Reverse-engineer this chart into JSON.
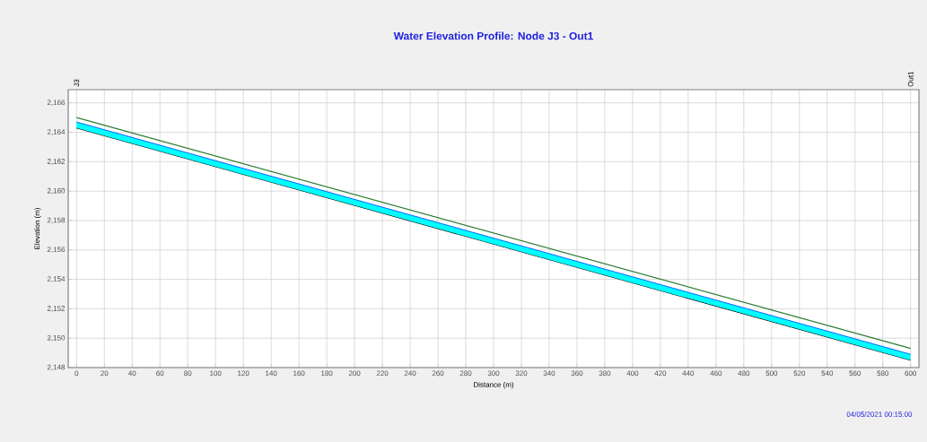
{
  "chart_data": {
    "type": "line",
    "title": "Water Elevation Profile:  Node J3 - Out1",
    "xlabel": "Distance (m)",
    "ylabel": "Elevation (m)",
    "x": [
      0,
      600
    ],
    "series": [
      {
        "color": "#000000",
        "values": [
          2164.3,
          2148.5
        ]
      },
      {
        "type": "area",
        "color": "#00ffff",
        "values": [
          2164.7,
          2148.9
        ]
      },
      {
        "color": "#2e7d32",
        "values": [
          2165.0,
          2149.3
        ]
      }
    ],
    "xlim": [
      -6,
      606
    ],
    "ylim": [
      2148,
      2166.9
    ],
    "xticks": [
      0,
      20,
      40,
      60,
      80,
      100,
      120,
      140,
      160,
      180,
      200,
      220,
      240,
      260,
      280,
      300,
      320,
      340,
      360,
      380,
      400,
      420,
      440,
      460,
      480,
      500,
      520,
      540,
      560,
      580,
      600
    ],
    "yticks": [
      {
        "value": 2148,
        "label": "2,148"
      },
      {
        "value": 2150,
        "label": "2,150"
      },
      {
        "value": 2152,
        "label": "2,152"
      },
      {
        "value": 2154,
        "label": "2,154"
      },
      {
        "value": 2156,
        "label": "2,156"
      },
      {
        "value": 2158,
        "label": "2,158"
      },
      {
        "value": 2160,
        "label": "2,160"
      },
      {
        "value": 2162,
        "label": "2,162"
      },
      {
        "value": 2164,
        "label": "2,164"
      },
      {
        "value": 2166,
        "label": "2,166"
      }
    ],
    "grid": true,
    "marker": "none",
    "line_style": "solid",
    "annotations": [
      "04/05/2021 00:15:00",
      "J3",
      "Out1"
    ]
  }
}
